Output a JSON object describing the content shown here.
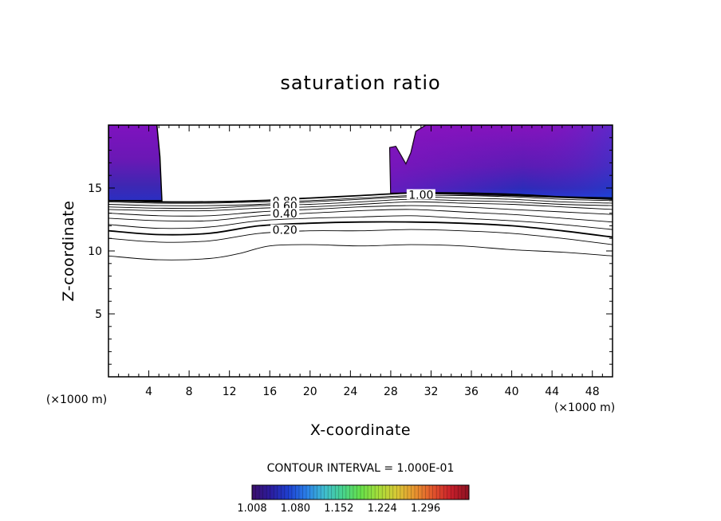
{
  "chart_data": {
    "type": "contour",
    "title": "saturation ratio",
    "xlabel": "X-coordinate",
    "ylabel": "Z-coordinate",
    "x_unit": "(×1000 m)",
    "y_unit": "(×1000 m)",
    "xlim": [
      0,
      50
    ],
    "ylim": [
      0,
      20
    ],
    "x_ticks": [
      4,
      8,
      12,
      16,
      20,
      24,
      28,
      32,
      36,
      40,
      44,
      48
    ],
    "y_ticks": [
      5,
      10,
      15
    ],
    "contour_interval_label": "CONTOUR INTERVAL = 1.000E-01",
    "contour_labels": [
      {
        "text": "0.80",
        "x": 17.5,
        "z": 13.9
      },
      {
        "text": "0.60",
        "x": 17.5,
        "z": 13.5
      },
      {
        "text": "0.40",
        "x": 17.5,
        "z": 12.9
      },
      {
        "text": "0.20",
        "x": 17.5,
        "z": 11.6
      },
      {
        "text": "1.00",
        "x": 31.0,
        "z": 14.4
      }
    ],
    "contour_lines": [
      {
        "level": 1.0,
        "heavy": true,
        "points": [
          [
            0,
            14.0
          ],
          [
            5,
            13.9
          ],
          [
            10,
            13.9
          ],
          [
            15,
            14.0
          ],
          [
            20,
            14.2
          ],
          [
            25,
            14.4
          ],
          [
            30,
            14.6
          ],
          [
            35,
            14.6
          ],
          [
            40,
            14.5
          ],
          [
            45,
            14.3
          ],
          [
            50,
            14.2
          ]
        ]
      },
      {
        "level": 0.9,
        "heavy": false,
        "points": [
          [
            0,
            13.9
          ],
          [
            5,
            13.8
          ],
          [
            10,
            13.8
          ],
          [
            15,
            13.9
          ],
          [
            20,
            14.0
          ],
          [
            25,
            14.2
          ],
          [
            30,
            14.4
          ],
          [
            35,
            14.4
          ],
          [
            40,
            14.3
          ],
          [
            45,
            14.1
          ],
          [
            50,
            14.0
          ]
        ]
      },
      {
        "level": 0.8,
        "heavy": false,
        "points": [
          [
            0,
            13.7
          ],
          [
            5,
            13.6
          ],
          [
            10,
            13.6
          ],
          [
            15,
            13.7
          ],
          [
            20,
            13.9
          ],
          [
            25,
            14.1
          ],
          [
            30,
            14.3
          ],
          [
            35,
            14.2
          ],
          [
            40,
            14.1
          ],
          [
            45,
            13.9
          ],
          [
            50,
            13.8
          ]
        ]
      },
      {
        "level": 0.7,
        "heavy": false,
        "points": [
          [
            0,
            13.5
          ],
          [
            5,
            13.4
          ],
          [
            10,
            13.4
          ],
          [
            15,
            13.6
          ],
          [
            20,
            13.7
          ],
          [
            25,
            13.9
          ],
          [
            30,
            14.1
          ],
          [
            35,
            14.0
          ],
          [
            40,
            13.9
          ],
          [
            45,
            13.7
          ],
          [
            50,
            13.6
          ]
        ]
      },
      {
        "level": 0.6,
        "heavy": false,
        "points": [
          [
            0,
            13.3
          ],
          [
            5,
            13.2
          ],
          [
            10,
            13.2
          ],
          [
            15,
            13.4
          ],
          [
            20,
            13.5
          ],
          [
            25,
            13.7
          ],
          [
            30,
            13.9
          ],
          [
            35,
            13.8
          ],
          [
            40,
            13.7
          ],
          [
            45,
            13.5
          ],
          [
            50,
            13.3
          ]
        ]
      },
      {
        "level": 0.5,
        "heavy": false,
        "points": [
          [
            0,
            13.0
          ],
          [
            5,
            12.8
          ],
          [
            10,
            12.8
          ],
          [
            15,
            13.1
          ],
          [
            20,
            13.3
          ],
          [
            25,
            13.5
          ],
          [
            30,
            13.6
          ],
          [
            35,
            13.5
          ],
          [
            40,
            13.3
          ],
          [
            45,
            13.1
          ],
          [
            50,
            12.9
          ]
        ]
      },
      {
        "level": 0.4,
        "heavy": false,
        "points": [
          [
            0,
            12.6
          ],
          [
            5,
            12.4
          ],
          [
            10,
            12.4
          ],
          [
            15,
            12.8
          ],
          [
            20,
            13.0
          ],
          [
            25,
            13.2
          ],
          [
            30,
            13.3
          ],
          [
            35,
            13.1
          ],
          [
            40,
            12.9
          ],
          [
            45,
            12.6
          ],
          [
            50,
            12.3
          ]
        ]
      },
      {
        "level": 0.3,
        "heavy": false,
        "points": [
          [
            0,
            12.1
          ],
          [
            5,
            11.8
          ],
          [
            10,
            11.9
          ],
          [
            15,
            12.4
          ],
          [
            20,
            12.6
          ],
          [
            25,
            12.7
          ],
          [
            30,
            12.8
          ],
          [
            35,
            12.6
          ],
          [
            40,
            12.4
          ],
          [
            45,
            12.1
          ],
          [
            50,
            11.7
          ]
        ]
      },
      {
        "level": 0.2,
        "heavy": true,
        "points": [
          [
            0,
            11.6
          ],
          [
            5,
            11.3
          ],
          [
            10,
            11.4
          ],
          [
            15,
            12.0
          ],
          [
            20,
            12.2
          ],
          [
            25,
            12.3
          ],
          [
            30,
            12.3
          ],
          [
            35,
            12.2
          ],
          [
            40,
            12.0
          ],
          [
            45,
            11.6
          ],
          [
            50,
            11.1
          ]
        ]
      },
      {
        "level": 0.1,
        "heavy": false,
        "points": [
          [
            0,
            11.0
          ],
          [
            5,
            10.7
          ],
          [
            10,
            10.8
          ],
          [
            15,
            11.4
          ],
          [
            20,
            11.6
          ],
          [
            25,
            11.6
          ],
          [
            30,
            11.7
          ],
          [
            35,
            11.6
          ],
          [
            40,
            11.4
          ],
          [
            45,
            11.0
          ],
          [
            50,
            10.5
          ]
        ]
      },
      {
        "level": 0.0,
        "heavy": false,
        "points": [
          [
            0,
            9.6
          ],
          [
            5,
            9.3
          ],
          [
            10,
            9.4
          ],
          [
            13,
            9.8
          ],
          [
            16,
            10.4
          ],
          [
            20,
            10.5
          ],
          [
            25,
            10.4
          ],
          [
            30,
            10.5
          ],
          [
            35,
            10.4
          ],
          [
            40,
            10.1
          ],
          [
            45,
            9.9
          ],
          [
            50,
            9.6
          ]
        ]
      }
    ],
    "shaded_regions": [
      {
        "name": "left",
        "fill": "#7a11b8",
        "outline": [
          [
            0,
            20
          ],
          [
            4.8,
            20
          ],
          [
            5.1,
            17.5
          ],
          [
            5.3,
            14.0
          ],
          [
            0,
            14.0
          ]
        ]
      },
      {
        "name": "right",
        "fill": "#7a11b8",
        "outline": [
          [
            31.5,
            20
          ],
          [
            50,
            20
          ],
          [
            50,
            14.1
          ],
          [
            40,
            14.4
          ],
          [
            35,
            14.5
          ],
          [
            30,
            14.6
          ],
          [
            28,
            14.6
          ],
          [
            27.9,
            18.2
          ],
          [
            28.5,
            18.3
          ],
          [
            29,
            17.6
          ],
          [
            29.5,
            16.9
          ],
          [
            30,
            17.8
          ],
          [
            30.5,
            19.5
          ],
          [
            31.5,
            20
          ]
        ]
      }
    ],
    "colorbar": {
      "min": 1.008,
      "max": 1.368,
      "tick_labels": [
        "1.008",
        "1.080",
        "1.152",
        "1.224",
        "1.296"
      ],
      "colors": [
        "#3b0f6b",
        "#2b1b9c",
        "#1e3fd0",
        "#2a7fe8",
        "#3fbdd0",
        "#47d38e",
        "#66df4a",
        "#a6dd3a",
        "#d8c835",
        "#e8942f",
        "#e2552c",
        "#c81f2a",
        "#8b1222"
      ]
    }
  }
}
